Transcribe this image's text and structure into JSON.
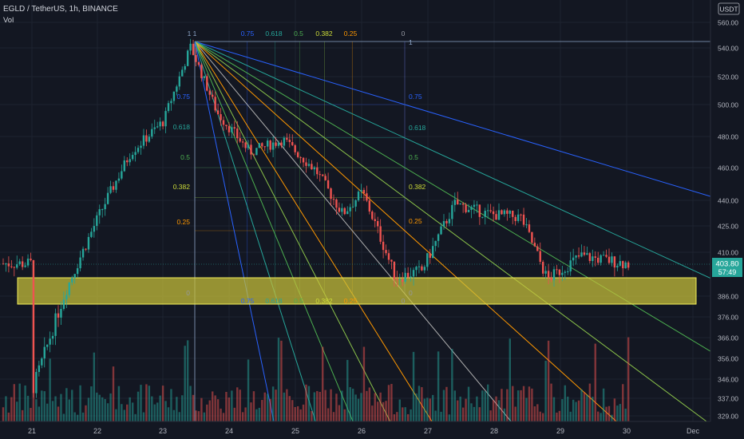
{
  "header": {
    "symbol_line": "EGLD / TetherUS, 1h, BINANCE",
    "indicator": "Vol"
  },
  "price_axis": {
    "currency": "USDT",
    "ticks": [
      "560.00",
      "540.00",
      "520.00",
      "500.00",
      "480.00",
      "460.00",
      "440.00",
      "425.00",
      "410.00",
      "386.00",
      "376.00",
      "366.00",
      "356.00",
      "346.00",
      "337.00",
      "329.00"
    ],
    "last_price": "403.80",
    "countdown": "57:49"
  },
  "time_axis": {
    "ticks": [
      "21",
      "22",
      "23",
      "24",
      "25",
      "26",
      "27",
      "28",
      "29",
      "30",
      "Dec"
    ]
  },
  "fib_labels": {
    "top_row": [
      "1",
      "1",
      "0.75",
      "0.618",
      "0.5",
      "0.382",
      "0.25",
      "0"
    ],
    "bottom_row": [
      "0.75",
      "0.618",
      "0.5",
      "0.382",
      "0.25",
      "0"
    ],
    "left_col": [
      "0.75",
      "0.618",
      "0.5",
      "0.382",
      "0.25",
      "0"
    ],
    "right_col": [
      "1",
      "0.75",
      "0.618",
      "0.5",
      "0.382",
      "0.25",
      "0"
    ]
  },
  "chart_data": {
    "type": "candlestick",
    "pair": "EGLD / TetherUS",
    "interval": "1h",
    "exchange": "BINANCE",
    "last_price": 403.8,
    "approx_path": [
      {
        "x": "21",
        "y": 340
      },
      {
        "x": "21.5",
        "y": 388
      },
      {
        "x": "22",
        "y": 430
      },
      {
        "x": "22.5",
        "y": 470
      },
      {
        "x": "23",
        "y": 490
      },
      {
        "x": "23.4",
        "y": 541
      },
      {
        "x": "23.8",
        "y": 495
      },
      {
        "x": "24.3",
        "y": 470
      },
      {
        "x": "24.8",
        "y": 478
      },
      {
        "x": "25.3",
        "y": 458
      },
      {
        "x": "25.7",
        "y": 432
      },
      {
        "x": "26",
        "y": 445
      },
      {
        "x": "26.5",
        "y": 396
      },
      {
        "x": "26.9",
        "y": 400
      },
      {
        "x": "27.4",
        "y": 438
      },
      {
        "x": "27.9",
        "y": 432
      },
      {
        "x": "28.4",
        "y": 430
      },
      {
        "x": "28.8",
        "y": 395
      },
      {
        "x": "29.3",
        "y": 408
      },
      {
        "x": "30",
        "y": 403.8
      }
    ],
    "fib_fan_origin": {
      "x": "23.4",
      "y": 541
    },
    "support_zone": {
      "from": 382,
      "to": 396,
      "color": "#e8e36a"
    },
    "colors": {
      "up": "#26a69a",
      "down": "#ef5350",
      "fan_blue": "#2962ff",
      "fan_teal": "#26a69a",
      "fan_green": "#4caf50",
      "fan_orange": "#ff9800"
    }
  }
}
